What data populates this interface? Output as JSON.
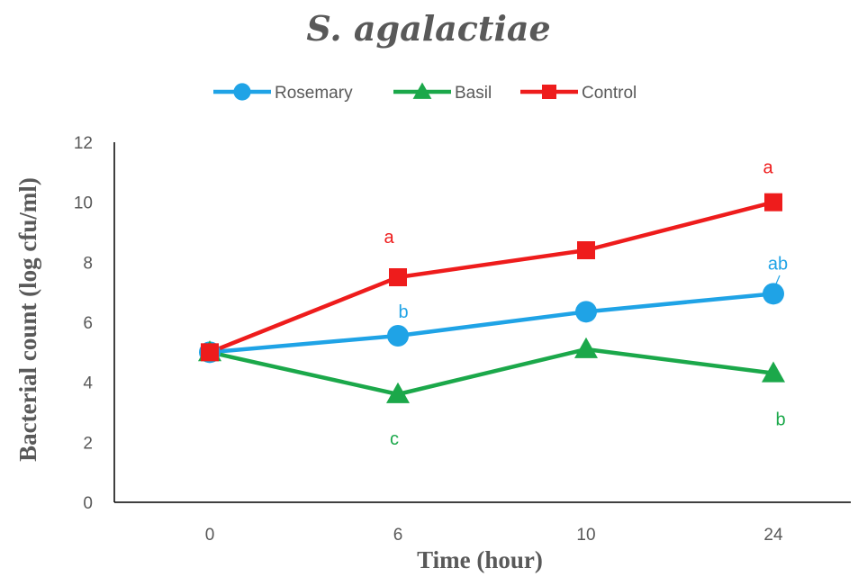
{
  "chart_data": {
    "type": "line",
    "title": "S. agalactiae",
    "xlabel": "Time (hour)",
    "ylabel": "Bacterial count (log cfu/ml)",
    "categories": [
      "0",
      "6",
      "10",
      "24"
    ],
    "ylim": [
      0,
      12
    ],
    "yticks": [
      "0",
      "2",
      "4",
      "6",
      "8",
      "10",
      "12"
    ],
    "grid": false,
    "legend_position": "top",
    "series": [
      {
        "name": "Rosemary",
        "color": "#1fa3e6",
        "marker": "circle",
        "values": [
          5.0,
          5.55,
          6.35,
          6.95
        ]
      },
      {
        "name": "Basil",
        "color": "#1ba84a",
        "marker": "triangle",
        "values": [
          5.0,
          3.6,
          5.1,
          4.3
        ]
      },
      {
        "name": "Control",
        "color": "#ee1c1c",
        "marker": "square",
        "values": [
          5.0,
          7.5,
          8.4,
          10.0
        ]
      }
    ],
    "annotations": [
      {
        "text": "a",
        "series": "Control",
        "category": "6",
        "color": "#ee1c1c"
      },
      {
        "text": "a",
        "series": "Control",
        "category": "24",
        "color": "#ee1c1c"
      },
      {
        "text": "b",
        "series": "Rosemary",
        "category": "6",
        "color": "#1fa3e6"
      },
      {
        "text": "ab",
        "series": "Rosemary",
        "category": "24",
        "color": "#1fa3e6"
      },
      {
        "text": "c",
        "series": "Basil",
        "category": "6",
        "color": "#1ba84a"
      },
      {
        "text": "b",
        "series": "Basil",
        "category": "24",
        "color": "#1ba84a"
      }
    ]
  }
}
